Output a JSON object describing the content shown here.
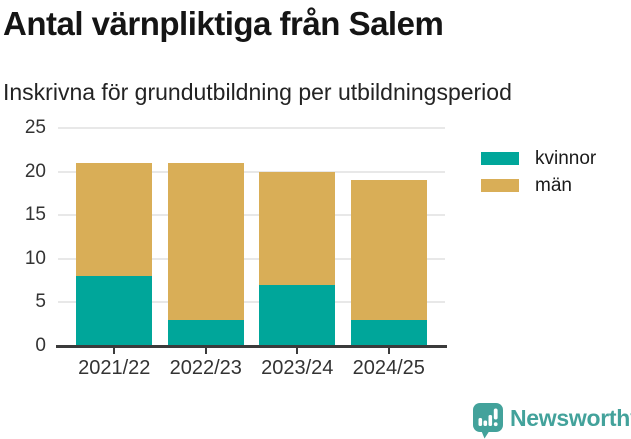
{
  "header": {
    "title": "Antal värnpliktiga från Salem",
    "subtitle": "Inskrivna för grundutbildning per utbildningsperiod"
  },
  "chart_data": {
    "type": "bar",
    "stacked": true,
    "title": "Antal värnpliktiga från Salem",
    "subtitle": "Inskrivna för grundutbildning per utbildningsperiod",
    "categories": [
      "2021/22",
      "2022/23",
      "2023/24",
      "2024/25"
    ],
    "series": [
      {
        "name": "kvinnor",
        "color": "#00a69a",
        "values": [
          8,
          3,
          7,
          3
        ]
      },
      {
        "name": "män",
        "color": "#d9ae57",
        "values": [
          13,
          18,
          13,
          16
        ]
      }
    ],
    "stack_totals": [
      21,
      21,
      20,
      19
    ],
    "xlabel": "",
    "ylabel": "",
    "ylim": [
      0,
      25
    ],
    "yticks": [
      0,
      5,
      10,
      15,
      20,
      25
    ],
    "grid": true,
    "legend_position": "top-right"
  },
  "footer": {
    "brand": "Newsworthy",
    "brand_color": "#43a29b",
    "logo_icon": "bar-chart-speech-bubble"
  },
  "colors": {
    "series_kvinnor": "#00a69a",
    "series_man": "#d9ae57",
    "gridline": "#e8e8e8",
    "axis": "#3b3b3b",
    "text_dark": "#151515",
    "text_axis": "#333333"
  }
}
